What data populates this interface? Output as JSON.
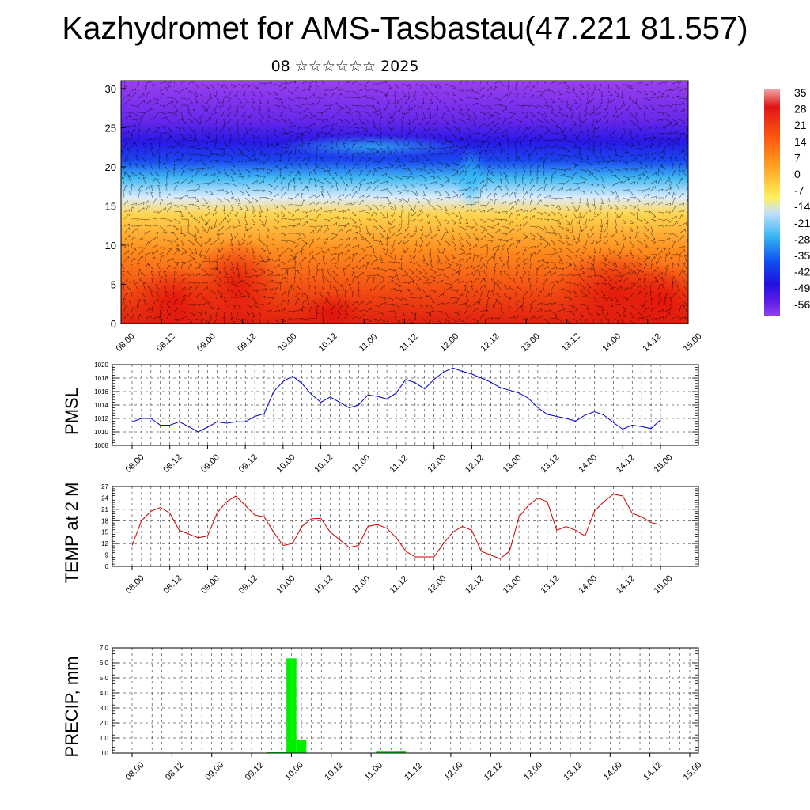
{
  "header": {
    "title": "Kazhydromet for AMS-Tasbastau(47.221 81.557)",
    "subtitle": "08 ☆☆☆☆☆☆ 2025"
  },
  "chart_data": [
    {
      "id": "cross_section",
      "type": "heatmap",
      "x_ticks": [
        "08.00",
        "08.12",
        "09.00",
        "09.12",
        "10.00",
        "10.12",
        "11.00",
        "11.12",
        "12.00",
        "12.12",
        "13.00",
        "13.12",
        "14.00",
        "14.12",
        "15.00"
      ],
      "y_ticks": [
        "0",
        "5",
        "10",
        "15",
        "20",
        "25",
        "30"
      ],
      "ylim": [
        0,
        31
      ],
      "colorbar_labels": [
        "35",
        "28",
        "21",
        "14",
        "7",
        "0",
        "-7",
        "-14",
        "-21",
        "-28",
        "-35",
        "-42",
        "-49",
        "-56"
      ],
      "colors": [
        "#f4a9a9",
        "#e01515",
        "#ff5a10",
        "#ffa020",
        "#ffd040",
        "#fff060",
        "#c0e0ff",
        "#30b0f0",
        "#1050f0",
        "#2010e0",
        "#6020e8",
        "#9040f0"
      ]
    },
    {
      "id": "pmsl",
      "type": "line",
      "ylabel": "PMSL",
      "ylim": [
        1008,
        1020
      ],
      "y_ticks": [
        "1008",
        "1010",
        "1012",
        "1014",
        "1016",
        "1018",
        "1020"
      ],
      "x_ticks": [
        "08.00",
        "08.12",
        "09.00",
        "09.12",
        "10.00",
        "10.12",
        "11.00",
        "11.12",
        "12.00",
        "12.12",
        "13.00",
        "13.12",
        "14.00",
        "14.12",
        "15.00"
      ],
      "series": [
        {
          "color": "#0000cc",
          "values": [
            1011.5,
            1012.0,
            1012.0,
            1011.0,
            1011.0,
            1011.5,
            1010.8,
            1010.0,
            1010.7,
            1011.5,
            1011.3,
            1011.5,
            1011.5,
            1012.3,
            1012.7,
            1016.0,
            1017.5,
            1018.3,
            1017.2,
            1015.6,
            1014.4,
            1015.2,
            1014.4,
            1013.6,
            1014.0,
            1015.5,
            1015.3,
            1014.9,
            1015.8,
            1017.8,
            1017.3,
            1016.4,
            1017.8,
            1018.9,
            1019.5,
            1019.0,
            1018.6,
            1018.0,
            1017.4,
            1016.6,
            1016.2,
            1015.8,
            1015.0,
            1013.6,
            1012.6,
            1012.3,
            1012.0,
            1011.6,
            1012.5,
            1013.0,
            1012.5,
            1011.4,
            1010.4,
            1011.0,
            1010.8,
            1010.5,
            1011.8
          ]
        }
      ]
    },
    {
      "id": "temp",
      "type": "line",
      "ylabel": "TEMP at 2 M",
      "ylim": [
        6,
        27
      ],
      "y_ticks": [
        "6",
        "9",
        "12",
        "15",
        "18",
        "21",
        "24",
        "27"
      ],
      "x_ticks": [
        "08.00",
        "08.12",
        "09.00",
        "09.12",
        "10.00",
        "10.12",
        "11.00",
        "11.12",
        "12.00",
        "12.12",
        "13.00",
        "13.12",
        "14.00",
        "14.12",
        "15.00"
      ],
      "series": [
        {
          "color": "#cc0000",
          "values": [
            11.5,
            18.0,
            20.5,
            21.5,
            20.0,
            15.5,
            14.5,
            13.5,
            14.0,
            20.0,
            23.0,
            24.5,
            22.0,
            19.5,
            19.0,
            15.0,
            11.5,
            12.0,
            16.5,
            18.5,
            18.6,
            15.0,
            13.0,
            11.0,
            11.5,
            16.5,
            17.0,
            16.0,
            13.5,
            10.0,
            8.5,
            8.5,
            8.5,
            12.0,
            15.0,
            16.5,
            15.5,
            10.0,
            9.0,
            8.0,
            10.0,
            19.0,
            22.0,
            24.0,
            23.0,
            15.5,
            16.5,
            15.5,
            14.0,
            20.5,
            23.0,
            25.0,
            24.5,
            20.0,
            19.0,
            17.5,
            17.0
          ]
        }
      ]
    },
    {
      "id": "precip",
      "type": "bar",
      "ylabel": "PRECIP, mm",
      "ylim": [
        0,
        7
      ],
      "y_ticks": [
        "0.0",
        "1.0",
        "2.0",
        "3.0",
        "4.0",
        "5.0",
        "6.0",
        "7.0"
      ],
      "x_ticks": [
        "08.00",
        "08.12",
        "09.00",
        "09.12",
        "10.00",
        "10.12",
        "11.00",
        "11.12",
        "12.00",
        "12.12",
        "13.00",
        "13.12",
        "14.00",
        "14.12",
        "15.00"
      ],
      "bar_color": "#00ee00",
      "values": [
        0,
        0,
        0,
        0,
        0,
        0,
        0,
        0,
        0,
        0,
        0,
        0,
        0,
        0,
        0.05,
        0.05,
        6.3,
        0.9,
        0,
        0,
        0,
        0,
        0,
        0,
        0,
        0.1,
        0.1,
        0.15,
        0,
        0,
        0,
        0,
        0,
        0,
        0,
        0,
        0,
        0,
        0,
        0,
        0,
        0,
        0,
        0,
        0,
        0,
        0,
        0,
        0,
        0,
        0,
        0,
        0,
        0,
        0,
        0,
        0
      ]
    }
  ]
}
